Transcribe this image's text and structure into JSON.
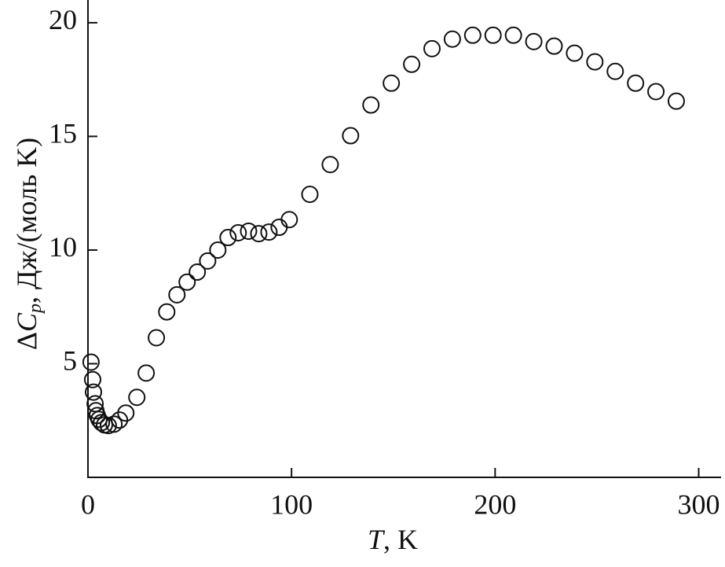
{
  "chart_data": {
    "type": "scatter",
    "x_label": [
      "T",
      ", K"
    ],
    "y_label": [
      "Δ",
      "C",
      "p",
      ", Дж/(моль K)"
    ],
    "xlim": [
      0,
      311
    ],
    "ylim": [
      0,
      21
    ],
    "xticks": [
      0,
      100,
      200,
      300
    ],
    "yticks": [
      5,
      10,
      15,
      20
    ],
    "color": "#111111",
    "series": [
      {
        "x": [
          1.5,
          2.3,
          2.7,
          3.5,
          3.9,
          4.6,
          5.4,
          6.6,
          8.1,
          10,
          12.8,
          15.5,
          18.6,
          24,
          28.6,
          33.6,
          38.7,
          43.7,
          48.7,
          53.7,
          58.8,
          63.8,
          68.8,
          73.8,
          78.9,
          83.9,
          88.9,
          93.9,
          98.9,
          109,
          119,
          129,
          139,
          149,
          159,
          169,
          179,
          189,
          199,
          209,
          219,
          229,
          239,
          249,
          259,
          269,
          279,
          289
        ],
        "values": [
          5.07,
          4.3,
          3.75,
          3.24,
          2.93,
          2.72,
          2.55,
          2.41,
          2.31,
          2.28,
          2.34,
          2.52,
          2.83,
          3.52,
          4.59,
          6.14,
          7.28,
          8.03,
          8.59,
          9.03,
          9.52,
          10.0,
          10.55,
          10.76,
          10.83,
          10.72,
          10.79,
          11.0,
          11.34,
          12.45,
          13.76,
          15.03,
          16.38,
          17.34,
          18.17,
          18.86,
          19.28,
          19.45,
          19.45,
          19.45,
          19.17,
          18.97,
          18.66,
          18.28,
          17.86,
          17.34,
          16.97,
          16.55
        ]
      }
    ]
  }
}
